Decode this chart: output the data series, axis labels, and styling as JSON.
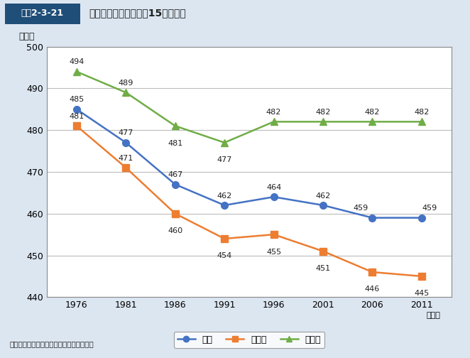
{
  "title": "図表2-3-21　平均睡眠時間の推移（15歳以上）",
  "title_box_label": "図表2-3-21",
  "title_main": "平均睡眠時間の推移（15歳以上）",
  "ylabel": "（分）",
  "xlabel_suffix": "（年）",
  "source": "資料：総務省統計局「社会生活基本調査」",
  "years": [
    1976,
    1981,
    1986,
    1991,
    1996,
    2001,
    2006,
    2011
  ],
  "sosuu": [
    485,
    477,
    467,
    462,
    464,
    462,
    459,
    459
  ],
  "yugyousha": [
    481,
    471,
    460,
    454,
    455,
    451,
    446,
    445
  ],
  "mugyousha": [
    494,
    489,
    481,
    477,
    482,
    482,
    482,
    482
  ],
  "sosuu_color": "#4472c4",
  "yugyousha_color": "#ed7d31",
  "mugyousha_color": "#70ad47",
  "ylim_min": 440,
  "ylim_max": 500,
  "yticks": [
    440,
    450,
    460,
    470,
    480,
    490,
    500
  ],
  "bg_color": "#dce6f1",
  "plot_bg_color": "#ffffff",
  "header_bg_color": "#1f4e79",
  "header_text_color": "#ffffff",
  "legend_labels": [
    "総数",
    "有業者",
    "無業者"
  ],
  "marker_size": 7
}
